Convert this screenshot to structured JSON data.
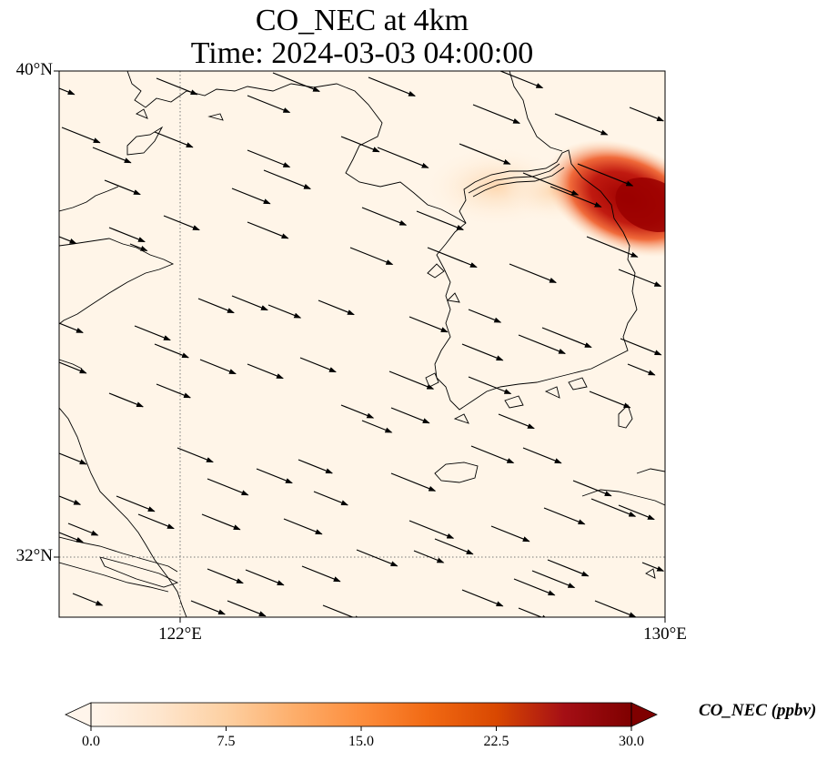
{
  "title": {
    "line1": "CO_NEC at 4km",
    "line2": "Time: 2024-03-03 04:00:00"
  },
  "axes": {
    "lat_labels": [
      "40°N",
      "32°N"
    ],
    "lon_labels": [
      "122°E",
      "130°E"
    ]
  },
  "colorbar": {
    "label": "CO_NEC (ppbv)",
    "ticks": [
      "0.0",
      "7.5",
      "15.0",
      "22.5",
      "30.0"
    ],
    "min": 0,
    "max": 30,
    "extend": "both",
    "colormap": [
      "#fff5eb",
      "#fee6ce",
      "#fdd0a2",
      "#fdae6b",
      "#fd8d3c",
      "#f16913",
      "#d94801",
      "#a50f15",
      "#7f0000"
    ]
  },
  "map": {
    "lat_range": [
      31,
      40
    ],
    "lon_range": [
      120,
      130
    ],
    "background_color": "#fff5e8",
    "gridlines": "dotted",
    "plume_color": "#b30000"
  }
}
